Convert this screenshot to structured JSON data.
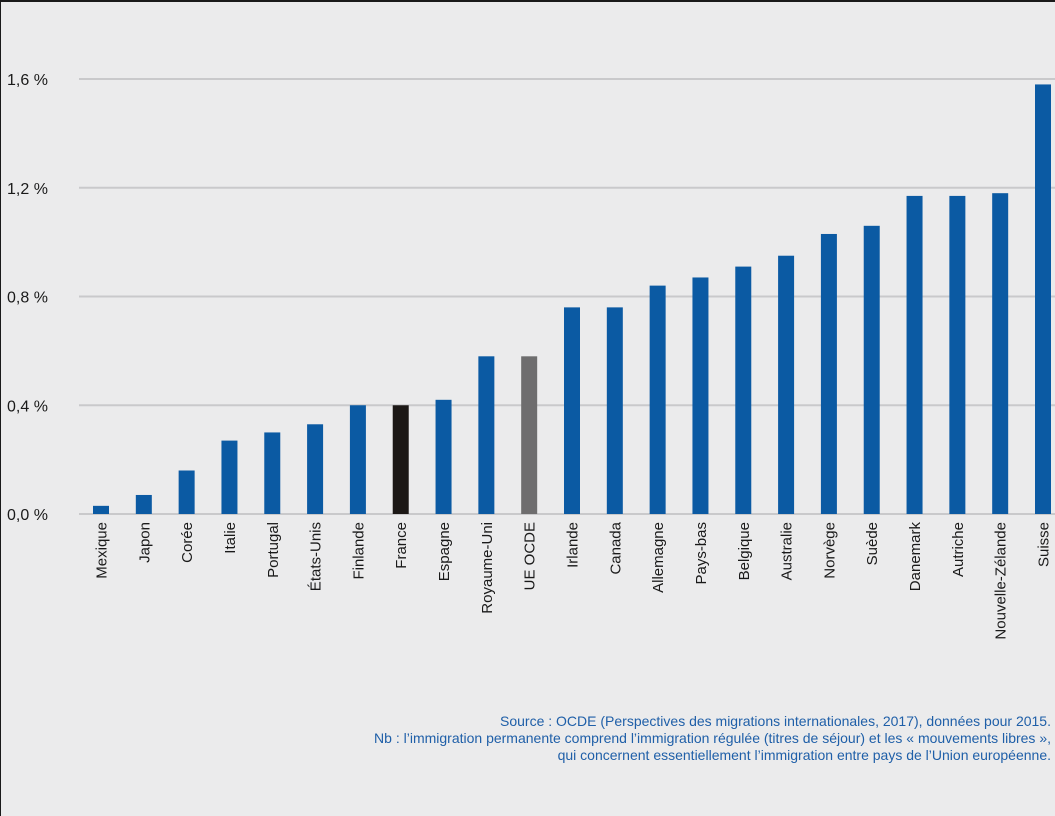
{
  "colors": {
    "background": "#ebebec",
    "bar_default": "#0b5aa3",
    "bar_france": "#1c1816",
    "bar_eu_oecd": "#6e6d6e",
    "grid": "#c9c9cb",
    "source_text": "#1f5fa8"
  },
  "chart_data": {
    "type": "bar",
    "title": "",
    "xlabel": "",
    "ylabel": "",
    "ylim": [
      0,
      1.6
    ],
    "yticks": [
      0.0,
      0.4,
      0.8,
      1.2,
      1.6
    ],
    "ytick_labels": [
      "0,0 %",
      "0,4 %",
      "0,8 %",
      "1,2 %",
      "1,6 %"
    ],
    "grid": "horizontal",
    "categories": [
      "Mexique",
      "Japon",
      "Corée",
      "Italie",
      "Portugal",
      "États-Unis",
      "Finlande",
      "France",
      "Espagne",
      "Royaume-Uni",
      "UE OCDE",
      "Irlande",
      "Canada",
      "Allemagne",
      "Pays-bas",
      "Belgique",
      "Australie",
      "Norvège",
      "Suède",
      "Danemark",
      "Autriche",
      "Nouvelle-Zélande",
      "Suisse"
    ],
    "values": [
      0.03,
      0.07,
      0.16,
      0.27,
      0.3,
      0.33,
      0.4,
      0.4,
      0.42,
      0.58,
      0.58,
      0.76,
      0.76,
      0.84,
      0.87,
      0.91,
      0.95,
      1.03,
      1.06,
      1.17,
      1.17,
      1.18,
      1.58
    ],
    "highlight": {
      "France": "bar_france",
      "UE OCDE": "bar_eu_oecd"
    }
  },
  "source": {
    "line1": "Source : OCDE (Perspectives des migrations internationales, 2017), données pour 2015.",
    "line2": "Nb : l’immigration permanente comprend l’immigration régulée (titres de séjour) et les « mouvements libres »,",
    "line3": "qui concernent essentiellement l’immigration entre pays de l’Union européenne."
  }
}
